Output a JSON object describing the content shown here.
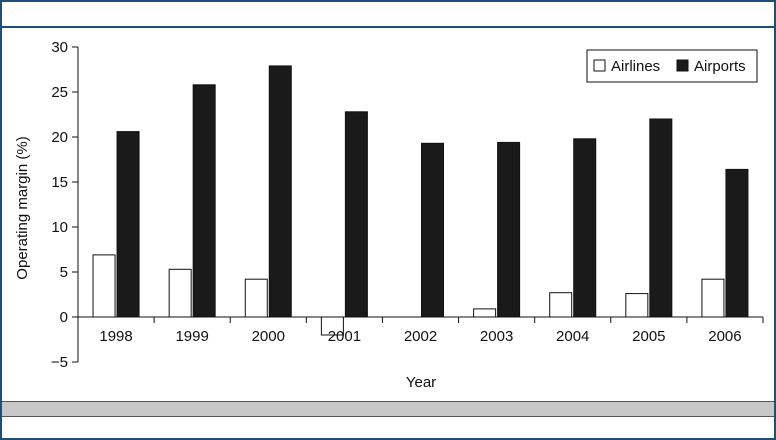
{
  "chart_data": {
    "type": "bar",
    "categories": [
      "1998",
      "1999",
      "2000",
      "2001",
      "2002",
      "2003",
      "2004",
      "2005",
      "2006"
    ],
    "series": [
      {
        "name": "Airlines",
        "values": [
          6.9,
          5.3,
          4.2,
          -2.0,
          0.0,
          0.9,
          2.7,
          2.6,
          4.2
        ],
        "color": "#ffffff"
      },
      {
        "name": "Airports",
        "values": [
          20.6,
          25.8,
          27.9,
          22.8,
          19.3,
          19.4,
          19.8,
          22.0,
          16.4
        ],
        "color": "#1a1a1a"
      }
    ],
    "xlabel": "Year",
    "ylabel": "Operating margin (%)",
    "ylim": [
      -5,
      30
    ],
    "yticks": [
      {
        "value": 30,
        "label": "30"
      },
      {
        "value": 25,
        "label": "25"
      },
      {
        "value": 20,
        "label": "20"
      },
      {
        "value": 15,
        "label": "15"
      },
      {
        "value": 10,
        "label": "10"
      },
      {
        "value": 5,
        "label": "5"
      },
      {
        "value": 0,
        "label": "0"
      },
      {
        "value": -5,
        "label": "−5"
      }
    ],
    "legend_position": "top-right",
    "grid": false
  }
}
